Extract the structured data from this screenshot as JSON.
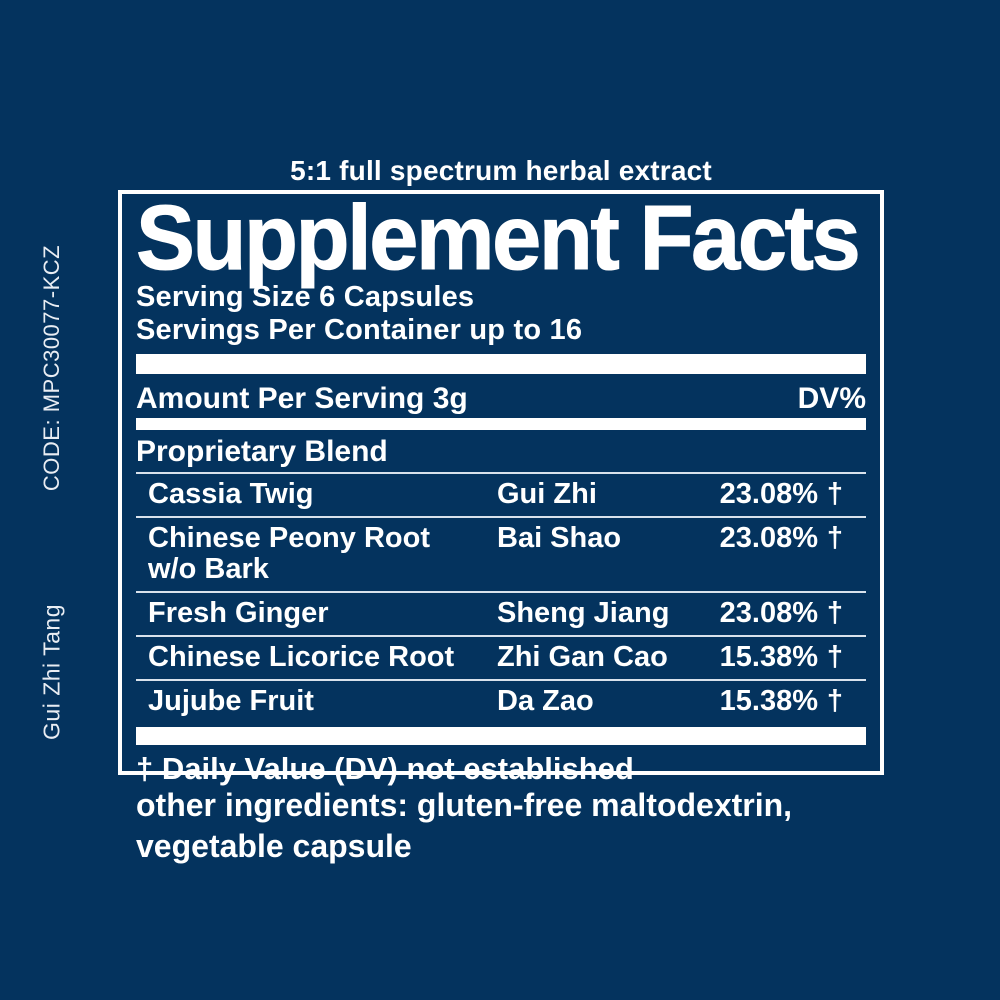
{
  "colors": {
    "background": "#04335e",
    "text": "#ffffff",
    "separator": "#d9e2ec"
  },
  "side": {
    "code": "CODE: MPC30077-KCZ",
    "product": "Gui Zhi Tang"
  },
  "tagline": "5:1 full spectrum herbal extract",
  "panel": {
    "title": "Supplement Facts",
    "serving_size": "Serving Size 6 Capsules",
    "servings_per_container": "Servings Per Container up to 16",
    "amount_header": "Amount Per Serving 3g",
    "dv_header": "DV%",
    "blend_header": "Proprietary Blend",
    "rows": [
      {
        "name": "Cassia Twig",
        "name2": "",
        "pinyin": "Gui Zhi",
        "dv": "23.08%",
        "dagger": "†"
      },
      {
        "name": "Chinese Peony Root",
        "name2": "w/o Bark",
        "pinyin": "Bai Shao",
        "dv": "23.08%",
        "dagger": "†"
      },
      {
        "name": "Fresh Ginger",
        "name2": "",
        "pinyin": "Sheng Jiang",
        "dv": "23.08%",
        "dagger": "†"
      },
      {
        "name": "Chinese Licorice Root",
        "name2": "",
        "pinyin": "Zhi Gan Cao",
        "dv": "15.38%",
        "dagger": "†"
      },
      {
        "name": "Jujube Fruit",
        "name2": "",
        "pinyin": "Da Zao",
        "dv": "15.38%",
        "dagger": "†"
      }
    ],
    "footnote": "† Daily Value (DV) not established"
  },
  "other_ingredients": {
    "line1": "other ingredients: gluten-free maltodextrin,",
    "line2": "vegetable capsule"
  }
}
